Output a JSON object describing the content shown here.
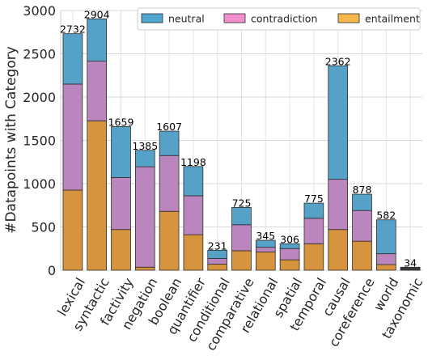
{
  "chart_data": {
    "type": "bar",
    "stacked": true,
    "ylabel": "#Datapoints with Category",
    "xlabel": "",
    "ylim": [
      0,
      3000
    ],
    "yticks": [
      0,
      500,
      1000,
      1500,
      2000,
      2500,
      3000
    ],
    "grid": true,
    "legend_position": "top-right",
    "categories": [
      "lexical",
      "syntactic",
      "factivity",
      "negation",
      "boolean",
      "quantifier",
      "conditional",
      "comparative",
      "relational",
      "spatial",
      "temporal",
      "causal",
      "coreference",
      "world",
      "taxonomic"
    ],
    "totals": [
      2732,
      2904,
      1659,
      1385,
      1607,
      1198,
      231,
      725,
      345,
      306,
      775,
      2362,
      878,
      582,
      34
    ],
    "series": [
      {
        "name": "entailment",
        "color": "#d6943f",
        "values": [
          925,
          1725,
          470,
          35,
          680,
          410,
          70,
          225,
          210,
          120,
          305,
          470,
          335,
          65,
          0
        ]
      },
      {
        "name": "contradiction",
        "color": "#bb86bd",
        "values": [
          1225,
          690,
          600,
          1160,
          645,
          450,
          65,
          300,
          55,
          130,
          295,
          580,
          355,
          125,
          0
        ]
      },
      {
        "name": "neutral",
        "color": "#55a1c7",
        "values": [
          582,
          489,
          589,
          190,
          282,
          338,
          96,
          200,
          80,
          56,
          175,
          1312,
          188,
          392,
          34
        ]
      }
    ],
    "legend": [
      {
        "name": "neutral",
        "color": "#4ea6d0"
      },
      {
        "name": "contradiction",
        "color": "#f28fcf"
      },
      {
        "name": "entailment",
        "color": "#f6b84b"
      }
    ]
  }
}
